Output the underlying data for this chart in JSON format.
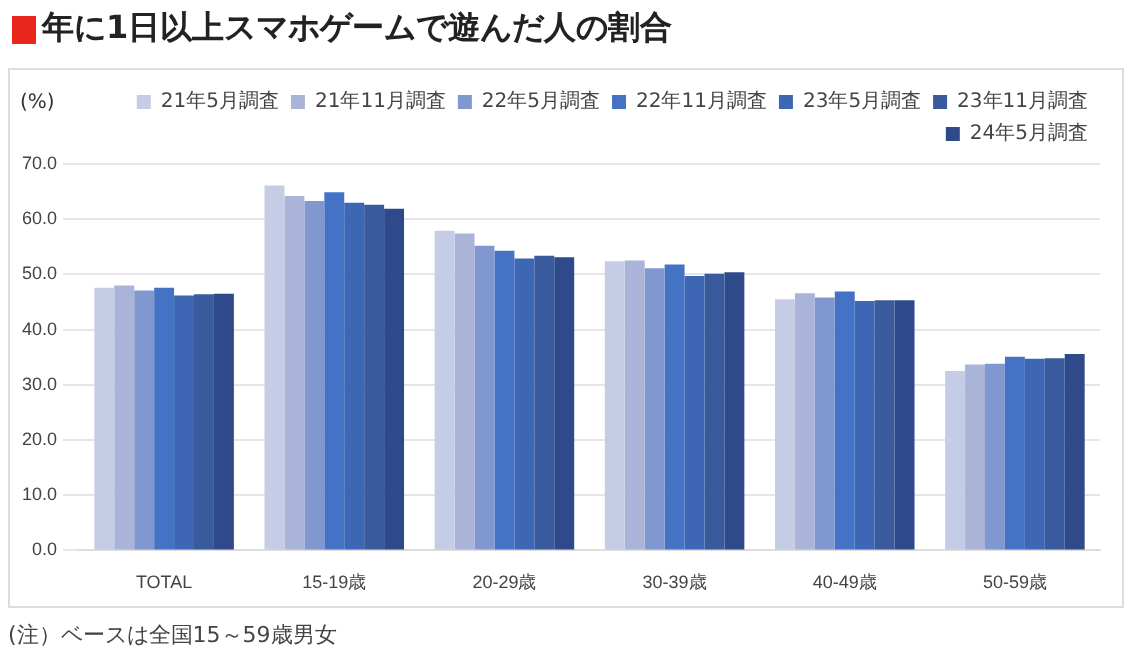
{
  "chart_data": {
    "type": "bar",
    "title": "年に1日以上スマホゲームで遊んだ人の割合",
    "ylabel": "(%)",
    "categories": [
      "TOTAL",
      "15-19歳",
      "20-29歳",
      "30-39歳",
      "40-49歳",
      "50-59歳"
    ],
    "series": [
      {
        "name": "21年5月調査",
        "color": "#c5cde6",
        "values": [
          47.6,
          66.1,
          57.9,
          52.4,
          45.5,
          32.5
        ]
      },
      {
        "name": "21年11月調査",
        "color": "#a9b4d8",
        "values": [
          48.0,
          64.2,
          57.4,
          52.5,
          46.6,
          33.7
        ]
      },
      {
        "name": "22年5月調査",
        "color": "#8197cf",
        "values": [
          47.1,
          63.3,
          55.2,
          51.1,
          45.8,
          33.8
        ]
      },
      {
        "name": "22年11月調査",
        "color": "#4472c4",
        "values": [
          47.6,
          64.9,
          54.3,
          51.8,
          46.9,
          35.1
        ]
      },
      {
        "name": "23年5月調査",
        "color": "#3d66b4",
        "values": [
          46.2,
          63.0,
          52.9,
          49.7,
          45.2,
          34.7
        ]
      },
      {
        "name": "23年11月調査",
        "color": "#3a5a9e",
        "values": [
          46.4,
          62.6,
          53.4,
          50.1,
          45.3,
          34.8
        ]
      },
      {
        "name": "24年5月調査",
        "color": "#2f4a8a",
        "values": [
          46.5,
          61.9,
          53.1,
          50.4,
          45.3,
          35.6
        ]
      }
    ],
    "ylim": [
      0,
      70
    ],
    "yticks": [
      {
        "value": 0,
        "label": "0.0"
      },
      {
        "value": 10,
        "label": "10.0"
      },
      {
        "value": 20,
        "label": "20.0"
      },
      {
        "value": 30,
        "label": "30.0"
      },
      {
        "value": 40,
        "label": "40.0"
      },
      {
        "value": 50,
        "label": "50.0"
      },
      {
        "value": 60,
        "label": "60.0"
      },
      {
        "value": 70,
        "label": "70.0"
      }
    ],
    "grid": "y",
    "legend": "top",
    "annotations": [
      "(注）ベースは全国15～59歳男女"
    ]
  }
}
